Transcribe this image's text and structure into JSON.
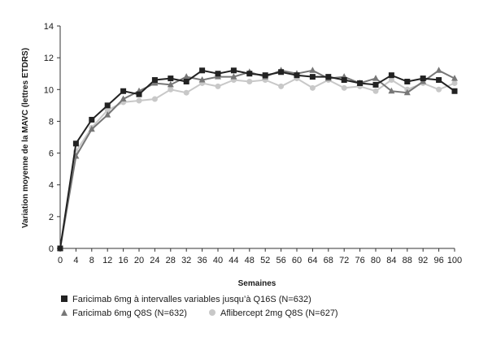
{
  "chart_data": {
    "type": "line",
    "title": "",
    "xlabel": "Semaines",
    "ylabel": "Variation moyenne de la MAVC (lettres ETDRS)",
    "xlim": [
      0,
      100
    ],
    "ylim": [
      0,
      14
    ],
    "x_ticks": [
      0,
      4,
      8,
      12,
      16,
      20,
      24,
      28,
      32,
      36,
      40,
      44,
      48,
      52,
      56,
      60,
      64,
      68,
      72,
      76,
      80,
      84,
      88,
      92,
      96,
      100
    ],
    "y_ticks": [
      0,
      2,
      4,
      6,
      8,
      10,
      12,
      14
    ],
    "grid": false,
    "legend_position": "bottom-left",
    "series": [
      {
        "name": "Faricimab 6mg à intervalles variables jusqu’à Q16S (N=632)",
        "marker": "square",
        "color": "#222222",
        "x": [
          0,
          4,
          8,
          12,
          16,
          20,
          24,
          28,
          32,
          36,
          40,
          44,
          48,
          52,
          56,
          60,
          64,
          68,
          72,
          76,
          80,
          84,
          88,
          92,
          96,
          100
        ],
        "y": [
          0,
          6.6,
          8.1,
          9.0,
          9.9,
          9.7,
          10.6,
          10.7,
          10.5,
          11.2,
          11.0,
          11.2,
          11.0,
          10.9,
          11.1,
          10.9,
          10.8,
          10.8,
          10.6,
          10.4,
          10.3,
          10.9,
          10.5,
          10.7,
          10.6,
          9.9
        ]
      },
      {
        "name": "Faricimab 6mg Q8S (N=632)",
        "marker": "triangle",
        "color": "#777777",
        "x": [
          0,
          4,
          8,
          12,
          16,
          20,
          24,
          28,
          32,
          36,
          40,
          44,
          48,
          52,
          56,
          60,
          64,
          68,
          72,
          76,
          80,
          84,
          88,
          92,
          96,
          100
        ],
        "y": [
          0,
          5.8,
          7.5,
          8.4,
          9.4,
          9.9,
          10.4,
          10.3,
          10.8,
          10.6,
          10.8,
          10.8,
          11.1,
          10.8,
          11.2,
          11.0,
          11.2,
          10.7,
          10.8,
          10.4,
          10.7,
          9.9,
          9.8,
          10.5,
          11.2,
          10.7
        ]
      },
      {
        "name": "Aflibercept 2mg Q8S (N=627)",
        "marker": "circle",
        "color": "#c8c8c8",
        "x": [
          0,
          4,
          8,
          12,
          16,
          20,
          24,
          28,
          32,
          36,
          40,
          44,
          48,
          52,
          56,
          60,
          64,
          68,
          72,
          76,
          80,
          84,
          88,
          92,
          96,
          100
        ],
        "y": [
          0,
          6.1,
          7.6,
          8.7,
          9.2,
          9.3,
          9.4,
          10.0,
          9.8,
          10.4,
          10.2,
          10.6,
          10.5,
          10.6,
          10.2,
          10.7,
          10.1,
          10.6,
          10.1,
          10.2,
          9.9,
          10.6,
          10.0,
          10.4,
          10.0,
          10.4
        ]
      }
    ]
  }
}
